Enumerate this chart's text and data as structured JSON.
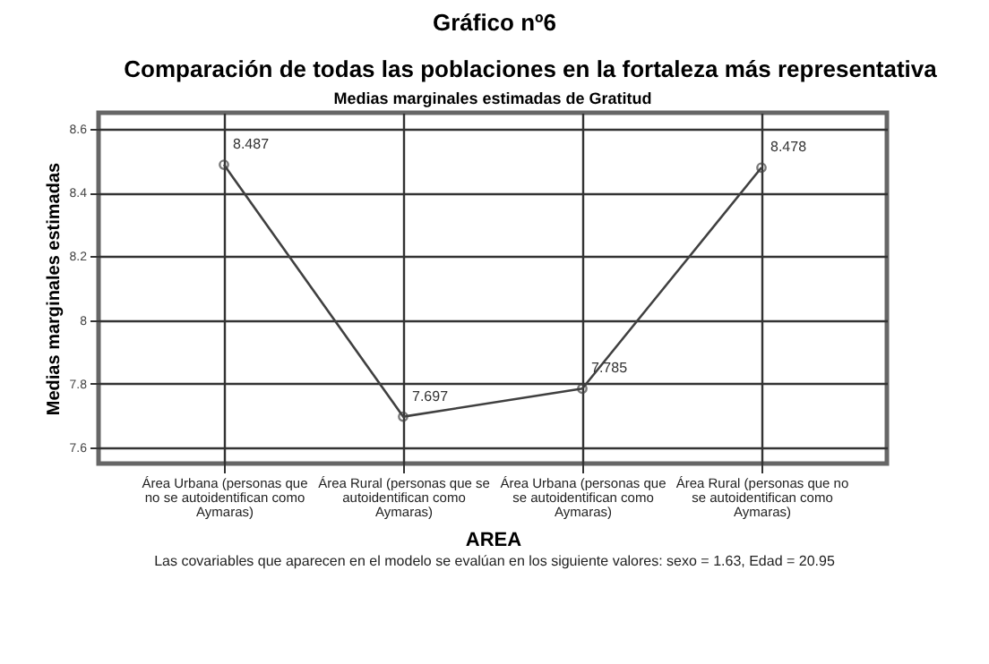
{
  "chart_data": {
    "type": "line",
    "title": "Gráfico nº6",
    "subtitle": "Comparación de todas las poblaciones en la fortaleza más representativa",
    "annotations": [
      "Medias marginales estimadas de Gratitud",
      "Las covariables que aparecen en el modelo se evalúan en los siguiente valores: sexo = 1.63, Edad = 20.95"
    ],
    "xlabel": "AREA",
    "ylabel": "Medias marginales estimadas",
    "categories": [
      "Área Urbana (personas que no se autoidentifican como Aymaras)",
      "Área Rural (personas que se autoidentifican como Aymaras)",
      "Área Urbana (personas que se autoidentifican como Aymaras)",
      "Área Rural (personas que no se autoidentifican como Aymaras)"
    ],
    "series": [
      {
        "color": "#404040",
        "values": [
          8.487,
          7.697,
          7.785,
          8.478
        ]
      }
    ],
    "ylim": [
      7.55,
      8.65
    ],
    "yticks": [
      7.6,
      7.8,
      8,
      8.2,
      8.4,
      8.6
    ],
    "grid": true,
    "marker": "circle",
    "data_labels": true
  }
}
